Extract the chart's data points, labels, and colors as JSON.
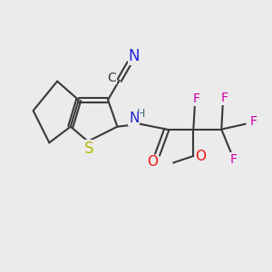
{
  "bg_color": "#ebebeb",
  "bond_color": "#3a3a3a",
  "bond_width": 1.5,
  "atom_colors": {
    "N": "#2020cc",
    "N_cyano": "#2020dd",
    "S": "#b8b800",
    "O": "#ee1111",
    "F": "#cc00aa",
    "NH": "#407070"
  },
  "font_size_main": 11,
  "font_size_sub": 9
}
